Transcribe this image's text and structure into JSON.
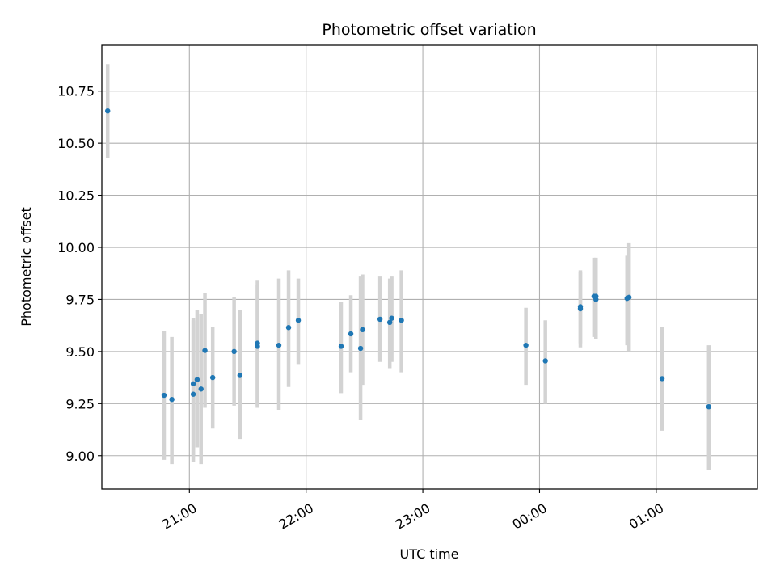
{
  "chart_data": {
    "type": "scatter",
    "title": "Photometric offset variation",
    "xlabel": "UTC time",
    "ylabel": "Photometric offset",
    "x_axis_kind": "time",
    "xlim": [
      "20:15",
      "01:52"
    ],
    "ylim": [
      8.84,
      10.97
    ],
    "x_ticks": [
      "21:00",
      "22:00",
      "23:00",
      "00:00",
      "01:00"
    ],
    "y_ticks": [
      9.0,
      9.25,
      9.5,
      9.75,
      10.0,
      10.25,
      10.5,
      10.75
    ],
    "y_tick_labels": [
      "9.00",
      "9.25",
      "9.50",
      "9.75",
      "10.00",
      "10.25",
      "10.50",
      "10.75"
    ],
    "grid": true,
    "marker_color": "#1f77b4",
    "errorbar_color": "#d3d3d3",
    "series": [
      {
        "points": [
          {
            "x": "20:18",
            "y": 10.655,
            "lo": 10.43,
            "hi": 10.88
          },
          {
            "x": "20:47",
            "y": 9.29,
            "lo": 8.98,
            "hi": 9.6
          },
          {
            "x": "20:51",
            "y": 9.27,
            "lo": 8.96,
            "hi": 9.57
          },
          {
            "x": "21:02",
            "y": 9.295,
            "lo": 8.97,
            "hi": 9.65
          },
          {
            "x": "21:02",
            "y": 9.345,
            "lo": 9.0,
            "hi": 9.66
          },
          {
            "x": "21:04",
            "y": 9.365,
            "lo": 9.04,
            "hi": 9.7
          },
          {
            "x": "21:06",
            "y": 9.32,
            "lo": 8.96,
            "hi": 9.68
          },
          {
            "x": "21:08",
            "y": 9.505,
            "lo": 9.23,
            "hi": 9.78
          },
          {
            "x": "21:12",
            "y": 9.375,
            "lo": 9.13,
            "hi": 9.62
          },
          {
            "x": "21:23",
            "y": 9.5,
            "lo": 9.24,
            "hi": 9.76
          },
          {
            "x": "21:26",
            "y": 9.385,
            "lo": 9.08,
            "hi": 9.7
          },
          {
            "x": "21:35",
            "y": 9.525,
            "lo": 9.23,
            "hi": 9.82
          },
          {
            "x": "21:35",
            "y": 9.54,
            "lo": 9.24,
            "hi": 9.84
          },
          {
            "x": "21:46",
            "y": 9.53,
            "lo": 9.22,
            "hi": 9.85
          },
          {
            "x": "21:51",
            "y": 9.615,
            "lo": 9.33,
            "hi": 9.89
          },
          {
            "x": "21:56",
            "y": 9.65,
            "lo": 9.44,
            "hi": 9.85
          },
          {
            "x": "22:18",
            "y": 9.525,
            "lo": 9.3,
            "hi": 9.74
          },
          {
            "x": "22:23",
            "y": 9.585,
            "lo": 9.4,
            "hi": 9.77
          },
          {
            "x": "22:28",
            "y": 9.515,
            "lo": 9.17,
            "hi": 9.86
          },
          {
            "x": "22:29",
            "y": 9.605,
            "lo": 9.34,
            "hi": 9.87
          },
          {
            "x": "22:38",
            "y": 9.655,
            "lo": 9.45,
            "hi": 9.86
          },
          {
            "x": "22:43",
            "y": 9.64,
            "lo": 9.42,
            "hi": 9.85
          },
          {
            "x": "22:44",
            "y": 9.66,
            "lo": 9.45,
            "hi": 9.86
          },
          {
            "x": "22:49",
            "y": 9.65,
            "lo": 9.4,
            "hi": 9.89
          },
          {
            "x": "23:53",
            "y": 9.53,
            "lo": 9.34,
            "hi": 9.71
          },
          {
            "x": "00:03",
            "y": 9.455,
            "lo": 9.25,
            "hi": 9.65
          },
          {
            "x": "00:21",
            "y": 9.705,
            "lo": 9.52,
            "hi": 9.89
          },
          {
            "x": "00:21",
            "y": 9.715,
            "lo": 9.54,
            "hi": 9.88
          },
          {
            "x": "00:28",
            "y": 9.765,
            "lo": 9.57,
            "hi": 9.95
          },
          {
            "x": "00:29",
            "y": 9.765,
            "lo": 9.59,
            "hi": 9.95
          },
          {
            "x": "00:29",
            "y": 9.75,
            "lo": 9.56,
            "hi": 9.93
          },
          {
            "x": "00:45",
            "y": 9.755,
            "lo": 9.53,
            "hi": 9.96
          },
          {
            "x": "00:46",
            "y": 9.76,
            "lo": 9.5,
            "hi": 10.02
          },
          {
            "x": "01:03",
            "y": 9.37,
            "lo": 9.12,
            "hi": 9.62
          },
          {
            "x": "01:27",
            "y": 9.235,
            "lo": 8.93,
            "hi": 9.53
          }
        ]
      }
    ]
  }
}
